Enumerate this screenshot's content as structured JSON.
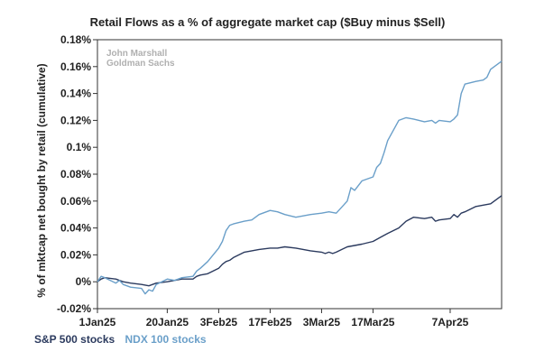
{
  "chart_data": {
    "type": "line",
    "title": "Retail Flows as a % of aggregate market cap ($Buy minus $Sell)",
    "ylabel": "% of mktcap net bought by retail (cumulative)",
    "xlabel": "",
    "ylim": [
      -0.02,
      0.18
    ],
    "yticks": [
      -0.02,
      0,
      0.02,
      0.04,
      0.06,
      0.08,
      0.1,
      0.12,
      0.14,
      0.16,
      0.18
    ],
    "ytick_labels": [
      "-0.02%",
      "0%",
      "0.02%",
      "0.04%",
      "0.06%",
      "0.08%",
      "0.1%",
      "0.12%",
      "0.14%",
      "0.16%",
      "0.18%"
    ],
    "x_range": [
      "2025-01-01",
      "2025-04-21"
    ],
    "xticks": [
      "2025-01-01",
      "2025-01-20",
      "2025-02-03",
      "2025-02-17",
      "2025-03-03",
      "2025-03-17",
      "2025-04-07"
    ],
    "xtick_labels": [
      "1Jan25",
      "20Jan25",
      "3Feb25",
      "17Feb25",
      "3Mar25",
      "17Mar25",
      "7Apr25"
    ],
    "grid": false,
    "legend_position": "bottom-left",
    "watermark": [
      "John Marshall",
      "Goldman Sachs"
    ],
    "series": [
      {
        "name": "S&P 500 stocks",
        "color": "#2b3a5e",
        "points": [
          [
            "2025-01-01",
            0.0
          ],
          [
            "2025-01-02",
            0.002
          ],
          [
            "2025-01-03",
            0.003
          ],
          [
            "2025-01-06",
            0.002
          ],
          [
            "2025-01-07",
            0.001
          ],
          [
            "2025-01-08",
            0.0
          ],
          [
            "2025-01-10",
            -0.001
          ],
          [
            "2025-01-13",
            -0.002
          ],
          [
            "2025-01-15",
            -0.003
          ],
          [
            "2025-01-16",
            -0.002
          ],
          [
            "2025-01-17",
            -0.001
          ],
          [
            "2025-01-20",
            0.0
          ],
          [
            "2025-01-22",
            0.001
          ],
          [
            "2025-01-24",
            0.002
          ],
          [
            "2025-01-27",
            0.002
          ],
          [
            "2025-01-28",
            0.004
          ],
          [
            "2025-01-29",
            0.005
          ],
          [
            "2025-01-31",
            0.006
          ],
          [
            "2025-02-03",
            0.01
          ],
          [
            "2025-02-04",
            0.013
          ],
          [
            "2025-02-05",
            0.015
          ],
          [
            "2025-02-06",
            0.016
          ],
          [
            "2025-02-07",
            0.018
          ],
          [
            "2025-02-10",
            0.022
          ],
          [
            "2025-02-12",
            0.023
          ],
          [
            "2025-02-14",
            0.024
          ],
          [
            "2025-02-17",
            0.025
          ],
          [
            "2025-02-19",
            0.025
          ],
          [
            "2025-02-21",
            0.026
          ],
          [
            "2025-02-24",
            0.025
          ],
          [
            "2025-02-26",
            0.024
          ],
          [
            "2025-02-28",
            0.023
          ],
          [
            "2025-03-03",
            0.022
          ],
          [
            "2025-03-04",
            0.021
          ],
          [
            "2025-03-05",
            0.022
          ],
          [
            "2025-03-06",
            0.021
          ],
          [
            "2025-03-07",
            0.022
          ],
          [
            "2025-03-10",
            0.026
          ],
          [
            "2025-03-12",
            0.027
          ],
          [
            "2025-03-14",
            0.028
          ],
          [
            "2025-03-17",
            0.03
          ],
          [
            "2025-03-19",
            0.033
          ],
          [
            "2025-03-21",
            0.036
          ],
          [
            "2025-03-24",
            0.04
          ],
          [
            "2025-03-26",
            0.045
          ],
          [
            "2025-03-28",
            0.048
          ],
          [
            "2025-03-31",
            0.047
          ],
          [
            "2025-04-02",
            0.048
          ],
          [
            "2025-04-03",
            0.045
          ],
          [
            "2025-04-04",
            0.046
          ],
          [
            "2025-04-07",
            0.047
          ],
          [
            "2025-04-08",
            0.05
          ],
          [
            "2025-04-09",
            0.048
          ],
          [
            "2025-04-10",
            0.051
          ],
          [
            "2025-04-11",
            0.052
          ],
          [
            "2025-04-14",
            0.056
          ],
          [
            "2025-04-16",
            0.057
          ],
          [
            "2025-04-18",
            0.058
          ],
          [
            "2025-04-21",
            0.064
          ]
        ]
      },
      {
        "name": "NDX 100 stocks",
        "color": "#6a9fc9",
        "points": [
          [
            "2025-01-01",
            0.0
          ],
          [
            "2025-01-02",
            0.004
          ],
          [
            "2025-01-03",
            0.003
          ],
          [
            "2025-01-06",
            -0.001
          ],
          [
            "2025-01-07",
            0.001
          ],
          [
            "2025-01-08",
            -0.002
          ],
          [
            "2025-01-10",
            -0.004
          ],
          [
            "2025-01-13",
            -0.005
          ],
          [
            "2025-01-14",
            -0.009
          ],
          [
            "2025-01-15",
            -0.006
          ],
          [
            "2025-01-16",
            -0.007
          ],
          [
            "2025-01-17",
            -0.002
          ],
          [
            "2025-01-20",
            0.002
          ],
          [
            "2025-01-22",
            0.001
          ],
          [
            "2025-01-24",
            0.003
          ],
          [
            "2025-01-27",
            0.004
          ],
          [
            "2025-01-28",
            0.008
          ],
          [
            "2025-01-29",
            0.01
          ],
          [
            "2025-01-31",
            0.015
          ],
          [
            "2025-02-03",
            0.025
          ],
          [
            "2025-02-04",
            0.03
          ],
          [
            "2025-02-05",
            0.038
          ],
          [
            "2025-02-06",
            0.042
          ],
          [
            "2025-02-07",
            0.043
          ],
          [
            "2025-02-10",
            0.045
          ],
          [
            "2025-02-12",
            0.046
          ],
          [
            "2025-02-14",
            0.05
          ],
          [
            "2025-02-17",
            0.053
          ],
          [
            "2025-02-19",
            0.052
          ],
          [
            "2025-02-21",
            0.05
          ],
          [
            "2025-02-24",
            0.048
          ],
          [
            "2025-02-26",
            0.049
          ],
          [
            "2025-02-28",
            0.05
          ],
          [
            "2025-03-03",
            0.051
          ],
          [
            "2025-03-05",
            0.052
          ],
          [
            "2025-03-07",
            0.051
          ],
          [
            "2025-03-10",
            0.06
          ],
          [
            "2025-03-11",
            0.07
          ],
          [
            "2025-03-12",
            0.068
          ],
          [
            "2025-03-14",
            0.075
          ],
          [
            "2025-03-17",
            0.078
          ],
          [
            "2025-03-18",
            0.085
          ],
          [
            "2025-03-19",
            0.088
          ],
          [
            "2025-03-20",
            0.096
          ],
          [
            "2025-03-21",
            0.105
          ],
          [
            "2025-03-24",
            0.12
          ],
          [
            "2025-03-26",
            0.122
          ],
          [
            "2025-03-28",
            0.121
          ],
          [
            "2025-03-31",
            0.119
          ],
          [
            "2025-04-02",
            0.12
          ],
          [
            "2025-04-03",
            0.118
          ],
          [
            "2025-04-04",
            0.12
          ],
          [
            "2025-04-07",
            0.119
          ],
          [
            "2025-04-08",
            0.121
          ],
          [
            "2025-04-09",
            0.124
          ],
          [
            "2025-04-10",
            0.14
          ],
          [
            "2025-04-11",
            0.147
          ],
          [
            "2025-04-14",
            0.149
          ],
          [
            "2025-04-16",
            0.15
          ],
          [
            "2025-04-17",
            0.152
          ],
          [
            "2025-04-18",
            0.158
          ],
          [
            "2025-04-21",
            0.164
          ]
        ]
      }
    ]
  }
}
